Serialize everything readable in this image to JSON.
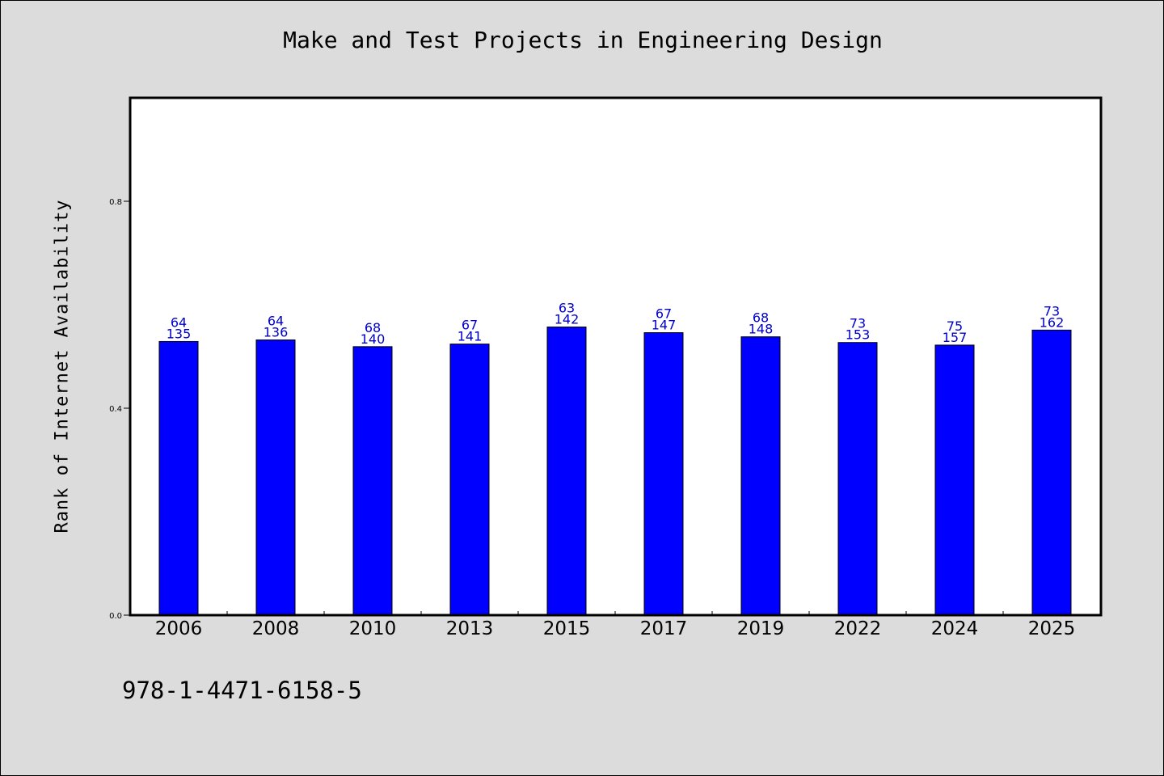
{
  "chart_data": {
    "type": "bar",
    "title": "Make and Test Projects in Engineering Design",
    "ylabel": "Rank of Internet Availability",
    "xlabel": "",
    "categories": [
      "2006",
      "2008",
      "2010",
      "2013",
      "2015",
      "2017",
      "2019",
      "2022",
      "2024",
      "2025"
    ],
    "values": [
      0.529,
      0.532,
      0.519,
      0.524,
      0.557,
      0.546,
      0.538,
      0.527,
      0.522,
      0.551
    ],
    "labels_top": [
      "64",
      "64",
      "68",
      "67",
      "63",
      "67",
      "68",
      "73",
      "75",
      "73"
    ],
    "labels_bottom": [
      "135",
      "136",
      "140",
      "141",
      "142",
      "147",
      "148",
      "153",
      "157",
      "162"
    ],
    "ylim": [
      0,
      1.0
    ],
    "yticks": [
      0.0,
      0.4,
      0.8
    ],
    "ytick_labels": [
      "0.0",
      "0.4",
      "0.8"
    ],
    "bar_color": "#0000ff",
    "label_color": "#0000cc",
    "grid": false,
    "legend": "none"
  },
  "footer": {
    "code": "978-1-4471-6158-5"
  }
}
